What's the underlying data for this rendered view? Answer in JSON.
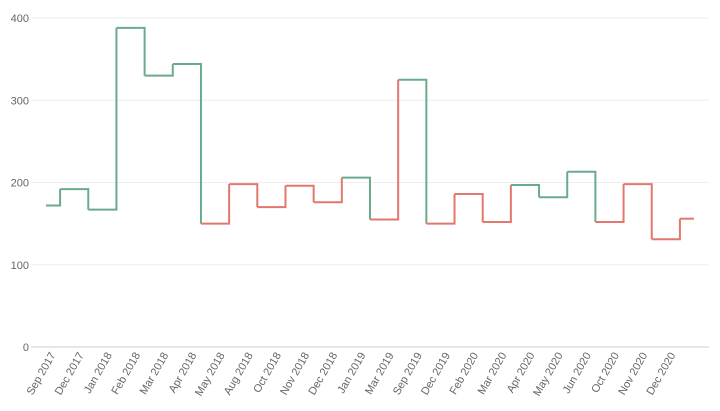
{
  "chart_data": {
    "type": "step",
    "categories": [
      "Sep 2017",
      "Dec 2017",
      "Jan 2018",
      "Feb 2018",
      "Mar 2018",
      "Apr 2018",
      "May 2018",
      "Aug 2018",
      "Oct 2018",
      "Nov 2018",
      "Dec 2018",
      "Jan 2019",
      "Mar 2019",
      "Sep 2019",
      "Dec 2019",
      "Feb 2020",
      "Mar 2020",
      "Apr 2020",
      "May 2020",
      "Jun 2020",
      "Oct 2020",
      "Nov 2020",
      "Dec 2020",
      null
    ],
    "values": [
      172,
      192,
      167,
      388,
      330,
      344,
      150,
      198,
      170,
      196,
      176,
      206,
      155,
      325,
      150,
      186,
      152,
      197,
      182,
      213,
      152,
      198,
      131,
      156
    ],
    "point_colors": [
      "#6aab8c",
      "#6aab8c",
      "#6aab8c",
      "#6aab8c",
      "#6aab8c",
      "#6aab8c",
      "#e2776e",
      "#e2776e",
      "#e2776e",
      "#e2776e",
      "#e2776e",
      "#6aab8c",
      "#e2776e",
      "#6aab8c",
      "#e2776e",
      "#e2776e",
      "#e2776e",
      "#6aab8c",
      "#6aab8c",
      "#6aab8c",
      "#e2776e",
      "#e2776e",
      "#e2776e",
      "#e2776e"
    ],
    "ylim": [
      0,
      400
    ],
    "yticks": [
      0,
      100,
      200,
      300,
      400
    ],
    "grid": true
  }
}
